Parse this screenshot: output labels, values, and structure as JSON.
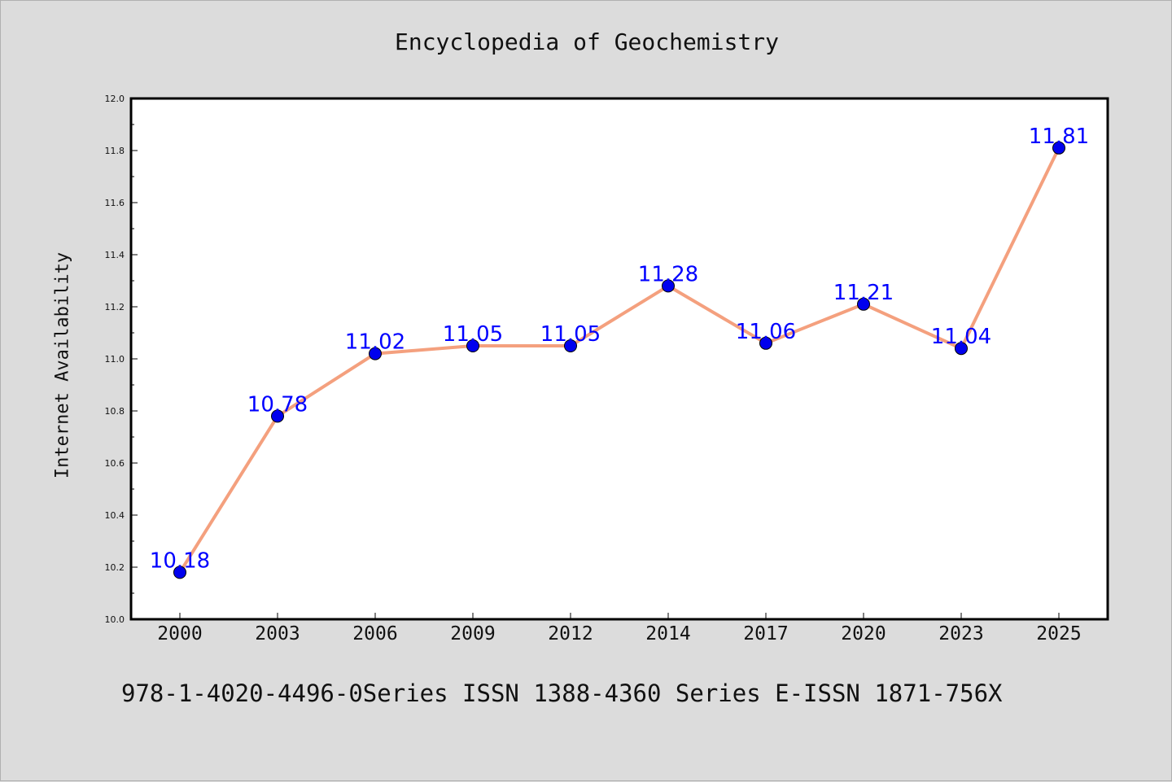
{
  "chart_data": {
    "type": "line",
    "title": "Encyclopedia of Geochemistry",
    "xlabel": "",
    "ylabel": "Internet Availability",
    "categories": [
      "2000",
      "2003",
      "2006",
      "2009",
      "2012",
      "2014",
      "2017",
      "2020",
      "2023",
      "2025"
    ],
    "series": [
      {
        "values": [
          10.18,
          10.78,
          11.02,
          11.05,
          11.05,
          11.28,
          11.06,
          11.21,
          11.04,
          11.81
        ]
      }
    ],
    "data_labels": [
      "10.18",
      "10.78",
      "11.02",
      "11.05",
      "11.05",
      "11.28",
      "11.06",
      "11.21",
      "11.04",
      "11.81"
    ],
    "ylim": [
      10.0,
      12.0
    ],
    "yticks": [
      "10.0",
      "10.2",
      "10.4",
      "10.6",
      "10.8",
      "11.0",
      "11.2",
      "11.4",
      "11.6",
      "11.8",
      "12.0"
    ],
    "grid": false,
    "legend": "none",
    "line_color": "#f4a07e",
    "marker_color": "#0000ee",
    "label_color": "#0000ff"
  },
  "footer": "978-1-4020-4496-0Series ISSN 1388-4360 Series E-ISSN 1871-756X"
}
